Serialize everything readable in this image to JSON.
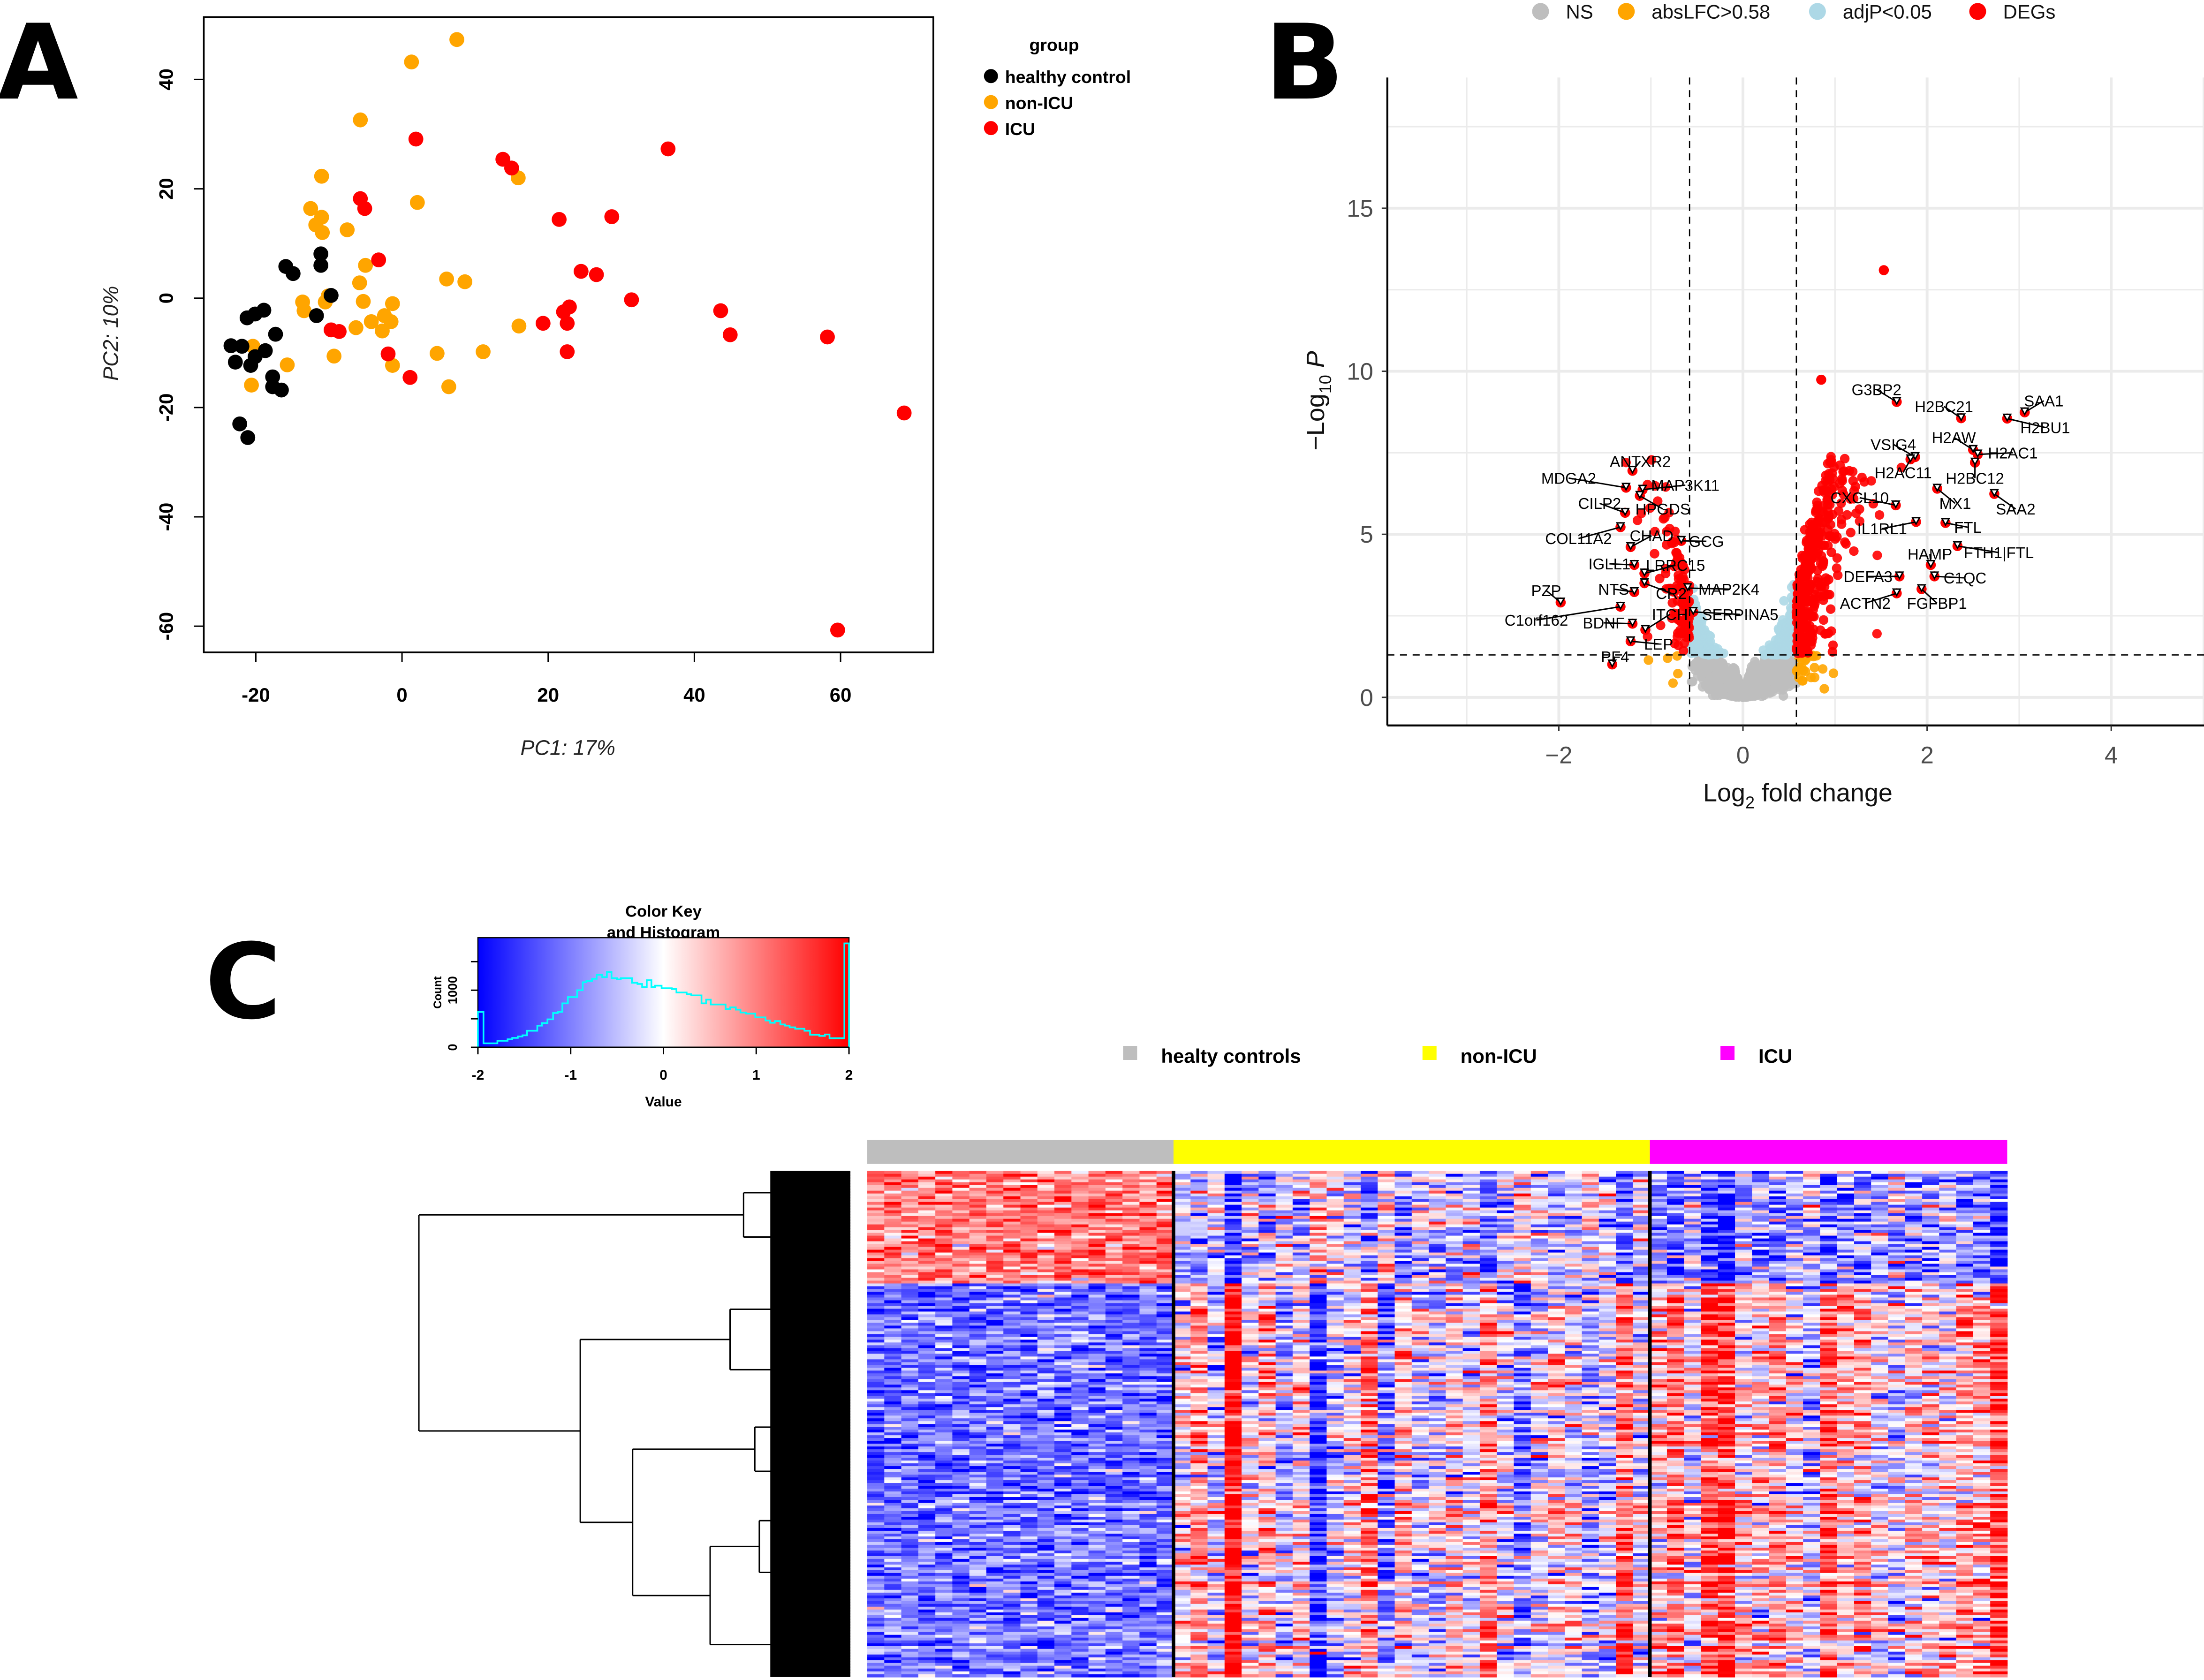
{
  "figure": {
    "panel_letters": [
      "A",
      "B",
      "C"
    ]
  },
  "colors": {
    "healthy": "#000000",
    "nonicu": "#FFA500",
    "icu": "#FF0000",
    "ns": "#BEBEBE",
    "abslfc": "#FFA500",
    "adjp": "#ADD8E6",
    "degs": "#FF0000",
    "ann_healthy": "#BEBEBE",
    "ann_nonicu": "#FFFF00",
    "ann_icu": "#FF00FF",
    "hist_line": "#00FFFF",
    "low": "#0000FF",
    "mid": "#FFFFFF",
    "high": "#FF0000"
  },
  "chart_data": [
    {
      "id": "pca",
      "type": "scatter",
      "xlabel": "PC1: 17%",
      "ylabel": "PC2: 10%",
      "xlim": [
        -27,
        72
      ],
      "ylim": [
        -65,
        52
      ],
      "xticks": [
        -20,
        0,
        20,
        40,
        60
      ],
      "yticks": [
        40,
        20,
        0,
        -20,
        -40,
        -60
      ],
      "legend": {
        "title": "group",
        "position": "right",
        "entries": [
          "healthy control",
          "non-ICU",
          "ICU"
        ]
      },
      "series": [
        {
          "name": "healthy control",
          "points": [
            [
              -15.9,
              5.8
            ],
            [
              -14.9,
              4.5
            ],
            [
              -11.1,
              8.1
            ],
            [
              -11.1,
              6
            ],
            [
              -9.7,
              0.5
            ],
            [
              -11.7,
              -3.2
            ],
            [
              -17.3,
              -6.6
            ],
            [
              -18.9,
              -2.2
            ],
            [
              -20.1,
              -2.9
            ],
            [
              -21.2,
              -3.6
            ],
            [
              -23.4,
              -8.7
            ],
            [
              -21.9,
              -8.8
            ],
            [
              -22.8,
              -11.7
            ],
            [
              -20.7,
              -12.3
            ],
            [
              -20.1,
              -10.7
            ],
            [
              -18.7,
              -9.6
            ],
            [
              -17.7,
              -14.4
            ],
            [
              -17.7,
              -16.2
            ],
            [
              -16.5,
              -16.8
            ],
            [
              -22.2,
              -23
            ],
            [
              -21.1,
              -25.5
            ]
          ]
        },
        {
          "name": "non-ICU",
          "points": [
            [
              1.3,
              43.2
            ],
            [
              7.5,
              47.3
            ],
            [
              -5.7,
              32.6
            ],
            [
              -11,
              22.3
            ],
            [
              2.1,
              17.5
            ],
            [
              15.9,
              22
            ],
            [
              -12.5,
              16.4
            ],
            [
              -11,
              14.8
            ],
            [
              -11.8,
              13.4
            ],
            [
              -10.9,
              12
            ],
            [
              -7.5,
              12.5
            ],
            [
              -5,
              6
            ],
            [
              -5.8,
              2.8
            ],
            [
              -5.3,
              -0.6
            ],
            [
              -1.3,
              -1
            ],
            [
              -10.1,
              0.4
            ],
            [
              -10.5,
              -0.7
            ],
            [
              -13.6,
              -0.7
            ],
            [
              -13.4,
              -2.3
            ],
            [
              -4.2,
              -4.3
            ],
            [
              -2.4,
              -3.2
            ],
            [
              -1.5,
              -4.3
            ],
            [
              -2.7,
              -6
            ],
            [
              -6.3,
              -5.4
            ],
            [
              -1.3,
              -12.3
            ],
            [
              -9.3,
              -10.6
            ],
            [
              -15.7,
              -12.2
            ],
            [
              -20.6,
              -15.9
            ],
            [
              -20.4,
              -8.8
            ],
            [
              4.8,
              -10.1
            ],
            [
              6.4,
              -16.2
            ],
            [
              11.1,
              -9.8
            ],
            [
              6.1,
              3.5
            ],
            [
              8.6,
              3
            ],
            [
              16,
              -5.1
            ]
          ]
        },
        {
          "name": "ICU",
          "points": [
            [
              1.9,
              29.1
            ],
            [
              13.8,
              25.4
            ],
            [
              15,
              23.8
            ],
            [
              36.4,
              27.3
            ],
            [
              -5.7,
              18.2
            ],
            [
              -5.1,
              16.4
            ],
            [
              21.5,
              14.4
            ],
            [
              28.7,
              14.9
            ],
            [
              -3.2,
              7
            ],
            [
              24.5,
              4.9
            ],
            [
              26.6,
              4.3
            ],
            [
              31.4,
              -0.3
            ],
            [
              43.6,
              -2.3
            ],
            [
              44.9,
              -6.7
            ],
            [
              58.2,
              -7.1
            ],
            [
              68.7,
              -21
            ],
            [
              59.6,
              -60.7
            ],
            [
              22.1,
              -2.5
            ],
            [
              22.9,
              -1.6
            ],
            [
              22.6,
              -4.6
            ],
            [
              19.3,
              -4.6
            ],
            [
              22.6,
              -9.8
            ],
            [
              -9.7,
              -5.8
            ],
            [
              -8.6,
              -6.1
            ],
            [
              -1.9,
              -10.2
            ],
            [
              1.1,
              -14.5
            ]
          ]
        }
      ]
    },
    {
      "id": "volcano",
      "type": "scatter",
      "xlabel": "Log2 fold change",
      "ylabel": "-Log10 P",
      "xlim": [
        -3.8,
        5.07
      ],
      "ylim": [
        -0.86,
        19.0
      ],
      "xticks": [
        -2,
        0,
        2,
        4
      ],
      "yticks": [
        0,
        5,
        10,
        15
      ],
      "thresholds": {
        "log2fc": 0.58,
        "neg_log10_p": 1.3
      },
      "legend": {
        "position": "top",
        "entries": [
          "NS",
          "absLFC>0.58",
          "adjP<0.05",
          "DEGs"
        ]
      },
      "highlighted": [
        [
          1.53,
          13.1
        ],
        [
          0.85,
          9.74
        ]
      ],
      "labeled_genes": [
        {
          "gene": "G3BP2",
          "x": 1.67,
          "y": 9.06
        },
        {
          "gene": "H2BC21",
          "x": 2.37,
          "y": 8.56
        },
        {
          "gene": "SAA1",
          "x": 3.06,
          "y": 8.74
        },
        {
          "gene": "H2BU1",
          "x": 2.87,
          "y": 8.55
        },
        {
          "gene": "H2AW",
          "x": 2.5,
          "y": 7.59
        },
        {
          "gene": "H2AC1",
          "x": 2.55,
          "y": 7.45
        },
        {
          "gene": "VSIG4",
          "x": 1.87,
          "y": 7.37
        },
        {
          "gene": "H2AC11",
          "x": 1.82,
          "y": 7.3
        },
        {
          "gene": "H2BC12",
          "x": 2.52,
          "y": 7.2
        },
        {
          "gene": "CXCL10",
          "x": 1.66,
          "y": 5.89
        },
        {
          "gene": "MX1",
          "x": 2.11,
          "y": 6.4
        },
        {
          "gene": "SAA2",
          "x": 2.73,
          "y": 6.24
        },
        {
          "gene": "IL1RL1",
          "x": 1.88,
          "y": 5.38
        },
        {
          "gene": "FTL",
          "x": 2.2,
          "y": 5.35
        },
        {
          "gene": "HAMP",
          "x": 2.04,
          "y": 4.06
        },
        {
          "gene": "FTH1|FTL",
          "x": 2.33,
          "y": 4.64
        },
        {
          "gene": "DEFA3",
          "x": 1.7,
          "y": 3.71
        },
        {
          "gene": "C1QC",
          "x": 2.08,
          "y": 3.71
        },
        {
          "gene": "ACTN2",
          "x": 1.67,
          "y": 3.19
        },
        {
          "gene": "FGFBP1",
          "x": 1.94,
          "y": 3.32
        },
        {
          "gene": "ANTXR2",
          "x": -1.2,
          "y": 6.95
        },
        {
          "gene": "MDGA2",
          "x": -1.27,
          "y": 6.43
        },
        {
          "gene": "MAP3K11",
          "x": -1.09,
          "y": 6.37
        },
        {
          "gene": "CILP2",
          "x": -1.28,
          "y": 5.66
        },
        {
          "gene": "HPGDS",
          "x": -1.12,
          "y": 6.18
        },
        {
          "gene": "COL11A2",
          "x": -1.33,
          "y": 5.22
        },
        {
          "gene": "CHAD",
          "x": -1.22,
          "y": 4.61
        },
        {
          "gene": "GCG",
          "x": -0.67,
          "y": 4.8
        },
        {
          "gene": "IGLL1",
          "x": -1.18,
          "y": 4.06
        },
        {
          "gene": "LRRC15",
          "x": -1.07,
          "y": 3.8
        },
        {
          "gene": "NTS",
          "x": -1.18,
          "y": 3.23
        },
        {
          "gene": "MAP2K4",
          "x": -0.6,
          "y": 3.35
        },
        {
          "gene": "PZP",
          "x": -1.98,
          "y": 2.91
        },
        {
          "gene": "CR2",
          "x": -1.07,
          "y": 3.5
        },
        {
          "gene": "SERPINA5",
          "x": -0.54,
          "y": 2.62
        },
        {
          "gene": "C1orf162",
          "x": -1.33,
          "y": 2.78
        },
        {
          "gene": "ITCH",
          "x": -1.06,
          "y": 2.07
        },
        {
          "gene": "BDNF",
          "x": -1.2,
          "y": 2.26
        },
        {
          "gene": "LEP",
          "x": -1.22,
          "y": 1.72
        },
        {
          "gene": "PF4",
          "x": -1.42,
          "y": 1.01
        }
      ]
    },
    {
      "id": "heatmap",
      "type": "heatmap",
      "groups": [
        {
          "name": "healty controls",
          "columns": 18
        },
        {
          "name": "non-ICU",
          "columns": 28
        },
        {
          "name": "ICU",
          "columns": 21
        }
      ],
      "color_key": {
        "title_line1": "Color Key",
        "title_line2": "and Histogram",
        "xlabel": "Value",
        "ylabel": "Count",
        "xlim": [
          -2,
          2
        ],
        "xticks": [
          "-2",
          "-1",
          "0",
          "1",
          "2"
        ],
        "yticks": [
          "0",
          "1000"
        ],
        "ylim": [
          0,
          1920
        ],
        "histogram_steps": [
          [
            -2.0,
            620
          ],
          [
            -1.94,
            70
          ],
          [
            -1.79,
            115
          ],
          [
            -1.68,
            140
          ],
          [
            -1.63,
            165
          ],
          [
            -1.57,
            190
          ],
          [
            -1.52,
            210
          ],
          [
            -1.47,
            290
          ],
          [
            -1.36,
            380
          ],
          [
            -1.31,
            425
          ],
          [
            -1.25,
            490
          ],
          [
            -1.19,
            600
          ],
          [
            -1.14,
            620
          ],
          [
            -1.09,
            770
          ],
          [
            -1.03,
            880
          ],
          [
            -0.93,
            1000
          ],
          [
            -0.87,
            1140
          ],
          [
            -0.83,
            1160
          ],
          [
            -0.77,
            1200
          ],
          [
            -0.72,
            1270
          ],
          [
            -0.66,
            1230
          ],
          [
            -0.61,
            1320
          ],
          [
            -0.56,
            1210
          ],
          [
            -0.5,
            1190
          ],
          [
            -0.46,
            1210
          ],
          [
            -0.34,
            1130
          ],
          [
            -0.28,
            1110
          ],
          [
            -0.23,
            1055
          ],
          [
            -0.18,
            1175
          ],
          [
            -0.13,
            1055
          ],
          [
            -0.09,
            1080
          ],
          [
            -0.02,
            1035
          ],
          [
            0.09,
            1020
          ],
          [
            0.14,
            960
          ],
          [
            0.25,
            930
          ],
          [
            0.3,
            910
          ],
          [
            0.41,
            770
          ],
          [
            0.46,
            835
          ],
          [
            0.51,
            750
          ],
          [
            0.67,
            670
          ],
          [
            0.72,
            700
          ],
          [
            0.78,
            660
          ],
          [
            0.83,
            610
          ],
          [
            0.89,
            590
          ],
          [
            0.99,
            525
          ],
          [
            1.1,
            470
          ],
          [
            1.15,
            430
          ],
          [
            1.2,
            460
          ],
          [
            1.26,
            400
          ],
          [
            1.31,
            380
          ],
          [
            1.36,
            350
          ],
          [
            1.42,
            325
          ],
          [
            1.52,
            290
          ],
          [
            1.58,
            220
          ],
          [
            1.68,
            200
          ],
          [
            1.74,
            225
          ],
          [
            1.79,
            160
          ],
          [
            1.95,
            1820
          ]
        ]
      }
    }
  ]
}
